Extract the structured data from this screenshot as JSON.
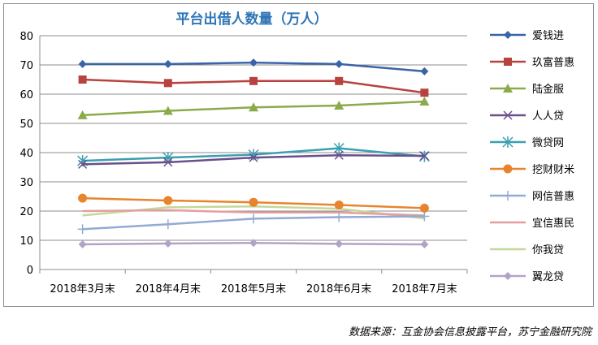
{
  "chart_data": {
    "type": "line",
    "title": "平台出借人数量（万人）",
    "categories": [
      "2018年3月末",
      "2018年4月末",
      "2018年5月末",
      "2018年6月末",
      "2018年7月末"
    ],
    "ylim": [
      0,
      80
    ],
    "yticks": [
      0,
      10,
      20,
      30,
      40,
      50,
      60,
      70,
      80
    ],
    "grid": true,
    "legend_position": "right",
    "series": [
      {
        "name": "爱钱进",
        "color": "#3a64a8",
        "marker": "diamond",
        "values": [
          70.3,
          70.3,
          70.8,
          70.3,
          67.8
        ]
      },
      {
        "name": "玖富普惠",
        "color": "#b8423f",
        "marker": "square",
        "values": [
          65.0,
          63.8,
          64.5,
          64.5,
          60.5
        ]
      },
      {
        "name": "陆金服",
        "color": "#8bab4a",
        "marker": "triangle",
        "values": [
          52.8,
          54.3,
          55.5,
          56.1,
          57.5
        ]
      },
      {
        "name": "人人贷",
        "color": "#6b4e8c",
        "marker": "x",
        "values": [
          36.0,
          36.7,
          38.3,
          39.1,
          38.9
        ]
      },
      {
        "name": "微贷网",
        "color": "#3b9fb0",
        "marker": "star",
        "values": [
          37.2,
          38.3,
          39.3,
          41.5,
          38.7
        ]
      },
      {
        "name": "挖财财米",
        "color": "#e8842d",
        "marker": "circle",
        "values": [
          24.4,
          23.6,
          23.0,
          22.1,
          21.0
        ]
      },
      {
        "name": "网信普惠",
        "color": "#93aad4",
        "marker": "plus",
        "values": [
          13.8,
          15.5,
          17.4,
          17.9,
          18.2
        ]
      },
      {
        "name": "宜信惠民",
        "color": "#e39f9e",
        "marker": "none",
        "values": [
          20.0,
          20.3,
          19.5,
          19.5,
          18.5
        ]
      },
      {
        "name": "你我贷",
        "color": "#c5d79b",
        "marker": "none",
        "values": [
          18.5,
          21.3,
          21.6,
          20.8,
          17.5
        ]
      },
      {
        "name": "翼龙贷",
        "color": "#b3a2c7",
        "marker": "diamond",
        "values": [
          8.6,
          8.9,
          9.1,
          8.8,
          8.6
        ]
      }
    ]
  },
  "source_note": "数据来源：互金协会信息披露平台，苏宁金融研究院"
}
